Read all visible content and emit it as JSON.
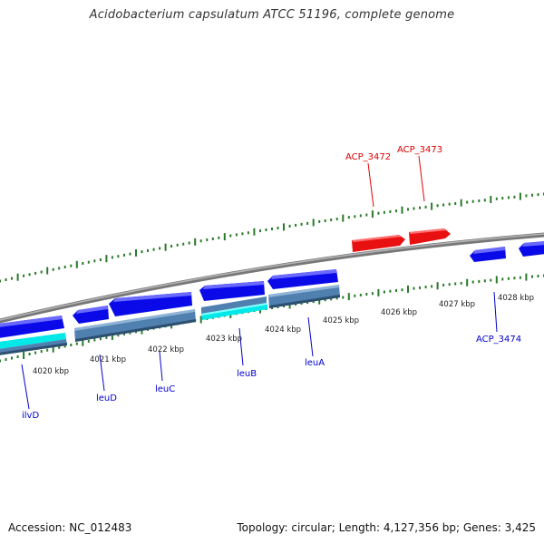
{
  "title": "Acidobacterium capsulatum ATCC 51196, complete genome",
  "footer": {
    "accession": "Accession: NC_012483",
    "summary": "Topology: circular; Length: 4,127,356 bp; Genes: 3,425"
  },
  "colors": {
    "backbone": "#888888",
    "tick": "#2a7a2a",
    "gene_blue": "#0a0ae8",
    "gene_red": "#e81010",
    "label_blue": "#0000cc",
    "label_red": "#dd0000",
    "steel": "#5080b0",
    "cyan": "#00e8e8"
  },
  "kbp_labels": [
    "4020 kbp",
    "4021 kbp",
    "4022 kbp",
    "4023 kbp",
    "4024 kbp",
    "4025 kbp",
    "4026 kbp",
    "4027 kbp",
    "4028 kbp"
  ],
  "gene_labels": {
    "ilvD": "ilvD",
    "leuD": "leuD",
    "leuC": "leuC",
    "leuB": "leuB",
    "leuA": "leuA",
    "acp3474": "ACP_3474",
    "acp3472": "ACP_3472",
    "acp3473": "ACP_3473"
  }
}
